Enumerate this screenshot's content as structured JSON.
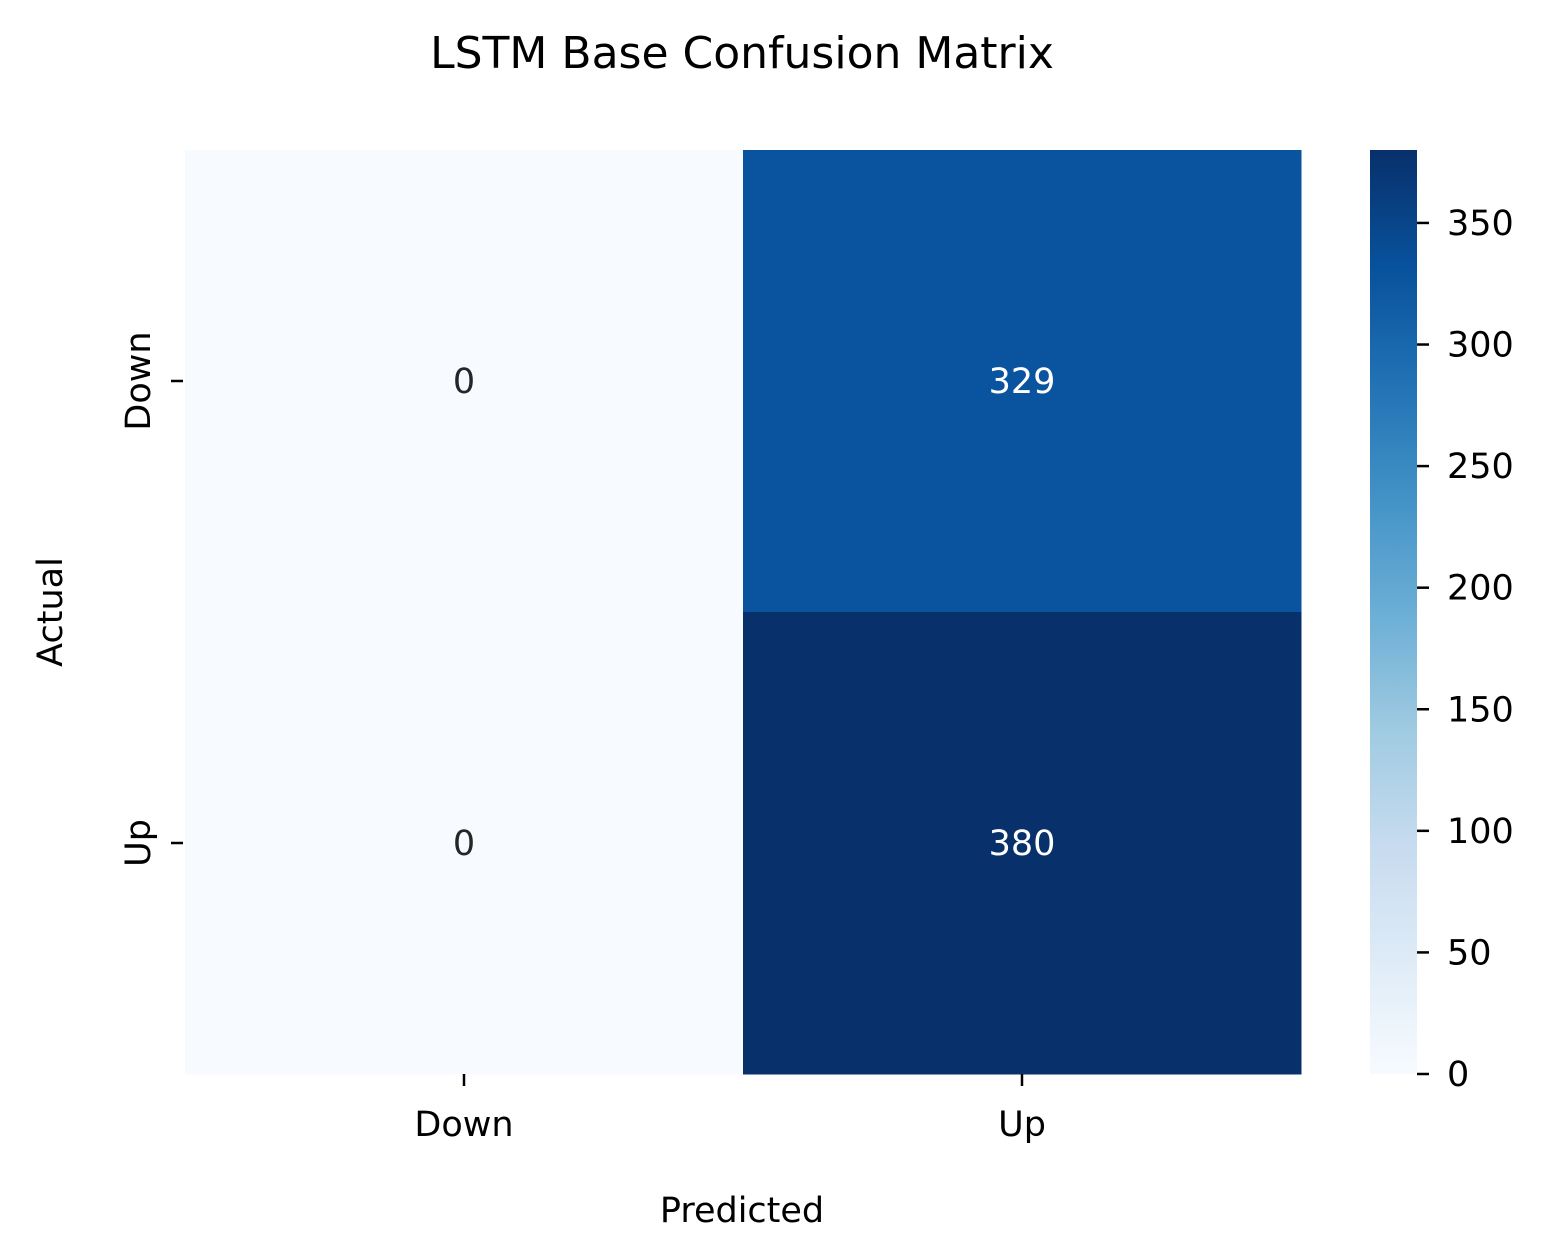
{
  "chart_data": {
    "type": "heatmap",
    "title": "LSTM Base Confusion Matrix",
    "xlabel": "Predicted",
    "ylabel": "Actual",
    "x_categories": [
      "Down",
      "Up"
    ],
    "y_categories": [
      "Down",
      "Up"
    ],
    "values": [
      [
        0,
        329
      ],
      [
        0,
        380
      ]
    ],
    "colormap": "Blues",
    "colorbar": {
      "range": [
        0,
        380
      ],
      "ticks": [
        0,
        50,
        100,
        150,
        200,
        250,
        300,
        350
      ],
      "tick_labels": [
        "0",
        "50",
        "100",
        "150",
        "200",
        "250",
        "300",
        "350"
      ]
    },
    "annotation_colors": {
      "light": "#262626",
      "dark": "#ffffff"
    },
    "grid": false
  }
}
